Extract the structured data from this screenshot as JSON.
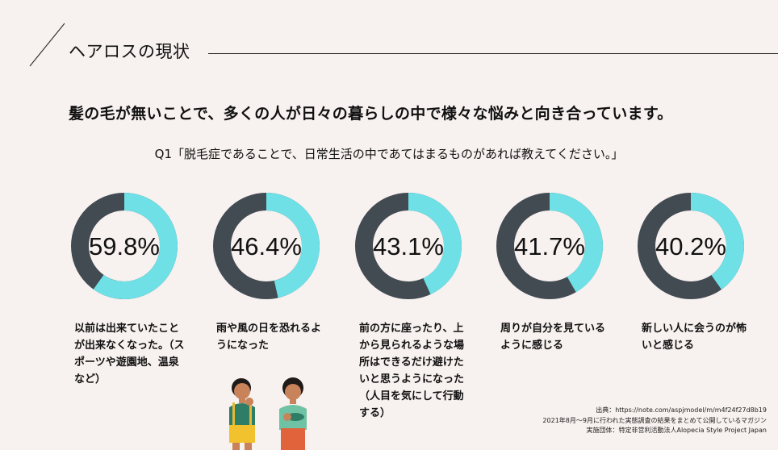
{
  "header": {
    "title": "ヘアロスの現状"
  },
  "headline": "髪の毛が無いことで、多くの人が日々の暮らしの中で様々な悩みと向き合っています。",
  "question": "Q1「脱毛症であることで、日常生活の中であてはまるものがあれば教えてください。」",
  "colors": {
    "accent": "#6ee0e6",
    "ring_base": "#424a52",
    "background": "#f7f1ef"
  },
  "chart_data": {
    "type": "pie",
    "style": "donut",
    "charts": [
      {
        "value": 59.8,
        "label": "59.8%",
        "caption": "以前は出来ていたことが出来なくなった。（スポーツや遊園地、温泉など）"
      },
      {
        "value": 46.4,
        "label": "46.4%",
        "caption": "雨や風の日を恐れるようになった"
      },
      {
        "value": 43.1,
        "label": "43.1%",
        "caption": "前の方に座ったり、上から見られるような場所はできるだけ避けたいと思うようになった（人目を気にして行動する）"
      },
      {
        "value": 41.7,
        "label": "41.7%",
        "caption": "周りが自分を見ているように感じる"
      },
      {
        "value": 40.2,
        "label": "40.2%",
        "caption": "新しい人に会うのが怖いと感じる"
      }
    ]
  },
  "captions": {
    "c1": "以前は出来ていたことが出来なくなった。（スポーツや遊園地、温泉など）",
    "c2": "雨や風の日を恐れるようになった",
    "c3": "前の方に座ったり、上から見られるような場所はできるだけ避けたいと思うようになった（人目を気にして行動する）",
    "c4": "周りが自分を見ているように感じる",
    "c5": "新しい人に会うのが怖いと感じる"
  },
  "source": {
    "line1": "出典：https://note.com/aspjmodel/m/m4f24f27d8b19",
    "line2": "2021年8月〜9月に行われた実態調査の結果をまとめて公開しているマガジン",
    "line3": "実施団体：特定非営利活動法人Alopecia Style Project Japan"
  }
}
